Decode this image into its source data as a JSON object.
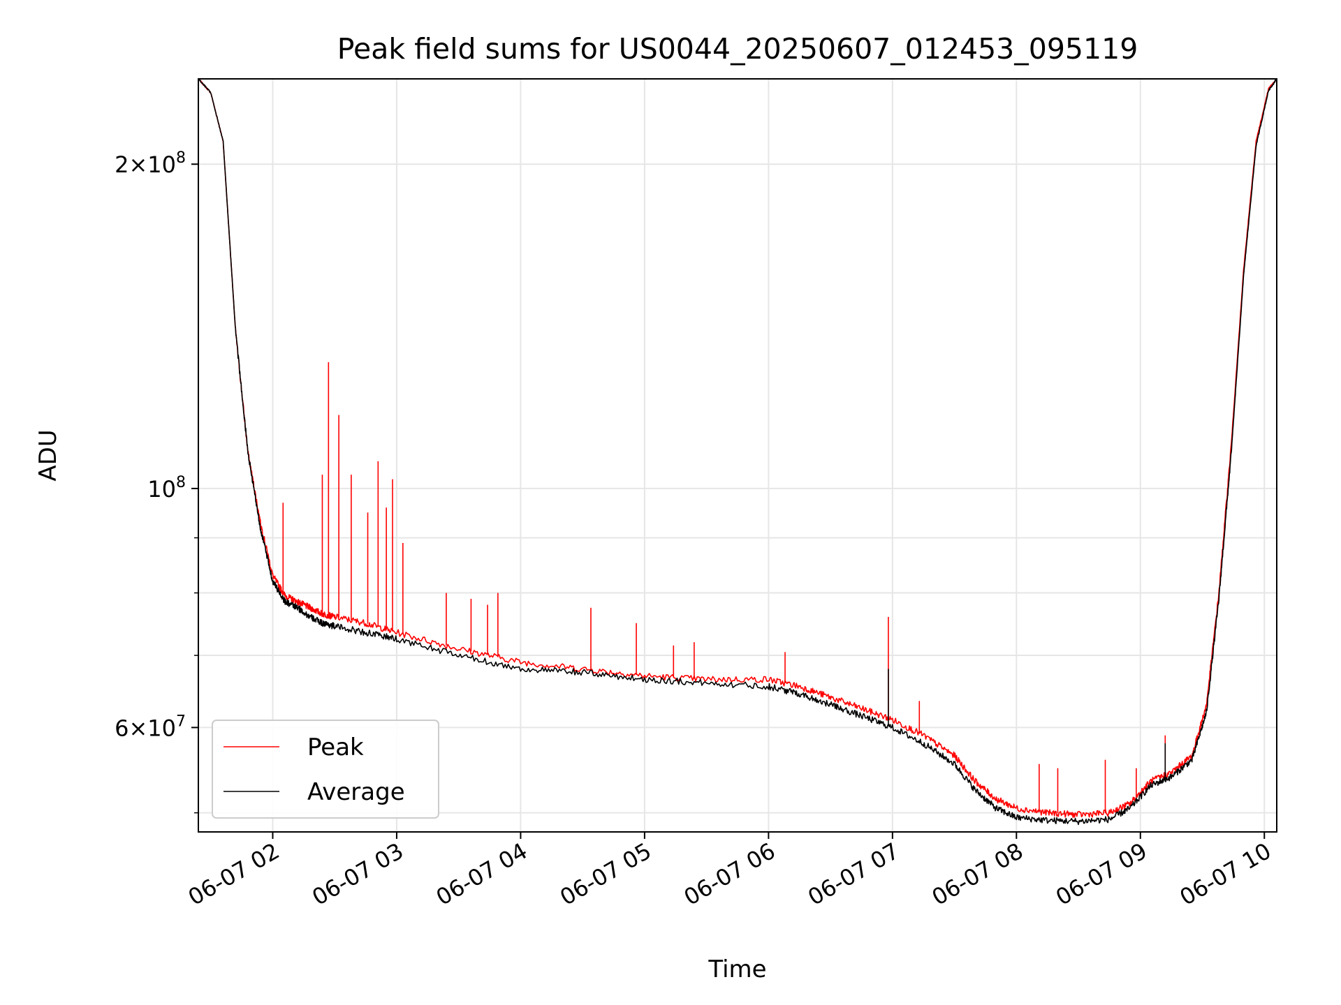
{
  "chart_data": {
    "type": "line",
    "title": "Peak field sums for US0044_20250607_012453_095119",
    "xlabel": "Time",
    "ylabel": "ADU",
    "yscale": "log",
    "grid": true,
    "legend_position": "lower-left",
    "xlim": [
      "2025-06-07 01:24",
      "2025-06-07 10:06"
    ],
    "ylim": [
      48000000,
      240000000
    ],
    "x_ticks": [
      "06-07 02",
      "06-07 03",
      "06-07 04",
      "06-07 05",
      "06-07 06",
      "06-07 07",
      "06-07 08",
      "06-07 09",
      "06-07 10"
    ],
    "y_ticks": [
      {
        "value": 200000000,
        "mantissa": "2",
        "exp": "8"
      },
      {
        "value": 100000000,
        "mantissa": "",
        "exp": "8"
      },
      {
        "value": 60000000,
        "mantissa": "6",
        "exp": "7"
      }
    ],
    "y_minor_ticks": [
      50000000,
      70000000,
      80000000,
      90000000
    ],
    "series": [
      {
        "name": "Peak",
        "color": "#ff0000",
        "x": [
          "2025-06-07 01:24",
          "2025-06-07 01:30",
          "2025-06-07 01:36",
          "2025-06-07 01:42",
          "2025-06-07 01:48",
          "2025-06-07 01:54",
          "2025-06-07 02:00",
          "2025-06-07 02:06",
          "2025-06-07 02:12",
          "2025-06-07 02:18",
          "2025-06-07 02:24",
          "2025-06-07 02:30",
          "2025-06-07 02:45",
          "2025-06-07 03:00",
          "2025-06-07 03:30",
          "2025-06-07 04:00",
          "2025-06-07 04:30",
          "2025-06-07 05:00",
          "2025-06-07 05:30",
          "2025-06-07 06:00",
          "2025-06-07 06:15",
          "2025-06-07 06:30",
          "2025-06-07 06:45",
          "2025-06-07 07:00",
          "2025-06-07 07:15",
          "2025-06-07 07:30",
          "2025-06-07 07:40",
          "2025-06-07 07:50",
          "2025-06-07 08:00",
          "2025-06-07 08:15",
          "2025-06-07 08:30",
          "2025-06-07 08:45",
          "2025-06-07 08:55",
          "2025-06-07 09:05",
          "2025-06-07 09:15",
          "2025-06-07 09:25",
          "2025-06-07 09:32",
          "2025-06-07 09:38",
          "2025-06-07 09:44",
          "2025-06-07 09:50",
          "2025-06-07 09:56",
          "2025-06-07 10:02",
          "2025-06-07 10:06"
        ],
        "y": [
          240000000,
          233000000,
          210000000,
          140000000,
          108000000,
          93000000,
          83000000,
          79500000,
          78500000,
          77500000,
          76500000,
          76000000,
          75000000,
          73500000,
          71000000,
          69000000,
          68000000,
          67000000,
          66500000,
          66500000,
          65500000,
          64000000,
          62500000,
          61000000,
          59000000,
          56500000,
          53500000,
          51500000,
          50500000,
          50000000,
          49800000,
          50000000,
          51000000,
          53500000,
          54500000,
          56500000,
          63000000,
          80000000,
          110000000,
          160000000,
          210000000,
          235000000,
          240000000
        ]
      },
      {
        "name": "Average",
        "color": "#000000",
        "x": [
          "2025-06-07 01:24",
          "2025-06-07 01:30",
          "2025-06-07 01:36",
          "2025-06-07 01:42",
          "2025-06-07 01:48",
          "2025-06-07 01:54",
          "2025-06-07 02:00",
          "2025-06-07 02:06",
          "2025-06-07 02:12",
          "2025-06-07 02:18",
          "2025-06-07 02:24",
          "2025-06-07 02:30",
          "2025-06-07 02:45",
          "2025-06-07 03:00",
          "2025-06-07 03:30",
          "2025-06-07 04:00",
          "2025-06-07 04:30",
          "2025-06-07 05:00",
          "2025-06-07 05:30",
          "2025-06-07 06:00",
          "2025-06-07 06:15",
          "2025-06-07 06:30",
          "2025-06-07 06:45",
          "2025-06-07 07:00",
          "2025-06-07 07:15",
          "2025-06-07 07:30",
          "2025-06-07 07:40",
          "2025-06-07 07:50",
          "2025-06-07 08:00",
          "2025-06-07 08:15",
          "2025-06-07 08:30",
          "2025-06-07 08:45",
          "2025-06-07 08:55",
          "2025-06-07 09:05",
          "2025-06-07 09:15",
          "2025-06-07 09:25",
          "2025-06-07 09:32",
          "2025-06-07 09:38",
          "2025-06-07 09:44",
          "2025-06-07 09:50",
          "2025-06-07 09:56",
          "2025-06-07 10:02",
          "2025-06-07 10:06"
        ],
        "y": [
          240000000,
          233000000,
          210000000,
          140000000,
          108000000,
          92000000,
          82000000,
          78500000,
          77500000,
          76000000,
          75000000,
          74500000,
          73500000,
          72500000,
          70000000,
          68000000,
          67500000,
          66500000,
          66000000,
          65500000,
          64500000,
          63000000,
          61500000,
          60000000,
          58000000,
          55500000,
          52500000,
          50500000,
          49500000,
          49200000,
          49100000,
          49300000,
          50500000,
          53000000,
          54000000,
          56000000,
          62000000,
          79000000,
          108000000,
          158000000,
          208000000,
          234000000,
          240000000
        ]
      }
    ],
    "spikes": [
      {
        "series": "Peak",
        "x": "2025-06-07 02:05",
        "y": 97000000
      },
      {
        "series": "Peak",
        "x": "2025-06-07 02:24",
        "y": 103000000
      },
      {
        "series": "Peak",
        "x": "2025-06-07 02:27",
        "y": 131000000
      },
      {
        "series": "Peak",
        "x": "2025-06-07 02:32",
        "y": 117000000
      },
      {
        "series": "Peak",
        "x": "2025-06-07 02:38",
        "y": 103000000
      },
      {
        "series": "Peak",
        "x": "2025-06-07 02:46",
        "y": 95000000
      },
      {
        "series": "Peak",
        "x": "2025-06-07 02:51",
        "y": 106000000
      },
      {
        "series": "Peak",
        "x": "2025-06-07 02:55",
        "y": 96000000
      },
      {
        "series": "Peak",
        "x": "2025-06-07 02:58",
        "y": 102000000
      },
      {
        "series": "Peak",
        "x": "2025-06-07 03:03",
        "y": 89000000
      },
      {
        "series": "Peak",
        "x": "2025-06-07 03:24",
        "y": 80000000
      },
      {
        "series": "Peak",
        "x": "2025-06-07 03:36",
        "y": 79000000
      },
      {
        "series": "Peak",
        "x": "2025-06-07 03:44",
        "y": 78000000
      },
      {
        "series": "Peak",
        "x": "2025-06-07 03:49",
        "y": 80000000
      },
      {
        "series": "Peak",
        "x": "2025-06-07 04:34",
        "y": 77500000
      },
      {
        "series": "Peak",
        "x": "2025-06-07 04:56",
        "y": 75000000
      },
      {
        "series": "Peak",
        "x": "2025-06-07 05:14",
        "y": 71500000
      },
      {
        "series": "Peak",
        "x": "2025-06-07 05:24",
        "y": 72000000
      },
      {
        "series": "Peak",
        "x": "2025-06-07 06:08",
        "y": 70500000
      },
      {
        "series": "Peak",
        "x": "2025-06-07 06:58",
        "y": 76000000
      },
      {
        "series": "Peak",
        "x": "2025-06-07 07:13",
        "y": 63500000
      },
      {
        "series": "Peak",
        "x": "2025-06-07 08:11",
        "y": 55500000
      },
      {
        "series": "Peak",
        "x": "2025-06-07 08:20",
        "y": 55000000
      },
      {
        "series": "Peak",
        "x": "2025-06-07 08:43",
        "y": 56000000
      },
      {
        "series": "Peak",
        "x": "2025-06-07 08:58",
        "y": 55000000
      },
      {
        "series": "Peak",
        "x": "2025-06-07 09:12",
        "y": 59000000
      },
      {
        "series": "Average",
        "x": "2025-06-07 06:58",
        "y": 68000000
      },
      {
        "series": "Average",
        "x": "2025-06-07 09:12",
        "y": 58000000
      }
    ]
  }
}
